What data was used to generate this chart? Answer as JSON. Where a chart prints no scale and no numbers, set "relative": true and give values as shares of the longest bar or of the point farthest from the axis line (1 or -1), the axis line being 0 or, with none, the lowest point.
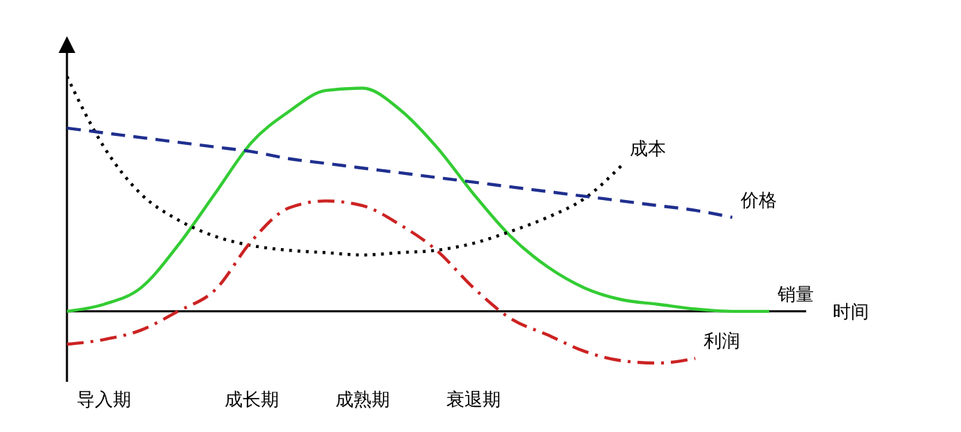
{
  "chart_data": {
    "type": "line",
    "relative": true,
    "xlabel": "时间",
    "categories": [
      null,
      "导入期",
      null,
      null,
      null,
      "成长期",
      null,
      null,
      "成熟期",
      null,
      null,
      "衰退期",
      null,
      null,
      null,
      null,
      null,
      null,
      null,
      null,
      null
    ],
    "series": [
      {
        "name": "销量",
        "color": "#33cc33",
        "line_style": "solid",
        "values": [
          0,
          0.03,
          0.1,
          0.28,
          0.5,
          0.72,
          0.85,
          0.94,
          0.95,
          0.86,
          0.7,
          0.5,
          0.32,
          0.19,
          0.1,
          0.05,
          0.03,
          0.01,
          0,
          0,
          null
        ]
      },
      {
        "name": "成本",
        "color": "#000000",
        "line_style": "dotted",
        "values": [
          1,
          0.7,
          0.5,
          0.39,
          0.32,
          0.28,
          0.26,
          0.25,
          0.24,
          0.25,
          0.26,
          0.29,
          0.34,
          0.4,
          0.48,
          0.62,
          null,
          null,
          null,
          null,
          null
        ]
      },
      {
        "name": "价格",
        "color": "#1f2f8f",
        "line_style": "dashed",
        "values": [
          0.78,
          0.76,
          0.74,
          0.72,
          0.7,
          0.68,
          0.65,
          0.63,
          0.61,
          0.59,
          0.57,
          0.55,
          0.53,
          0.51,
          0.49,
          0.47,
          0.45,
          0.43,
          0.4,
          null,
          null
        ]
      },
      {
        "name": "利润",
        "color": "#cc2222",
        "line_style": "dashdot",
        "values": [
          -0.14,
          -0.12,
          -0.08,
          0,
          0.09,
          0.3,
          0.44,
          0.47,
          0.45,
          0.37,
          0.26,
          0.1,
          -0.03,
          -0.1,
          -0.17,
          -0.21,
          -0.22,
          -0.2,
          null,
          null,
          null
        ]
      }
    ]
  }
}
